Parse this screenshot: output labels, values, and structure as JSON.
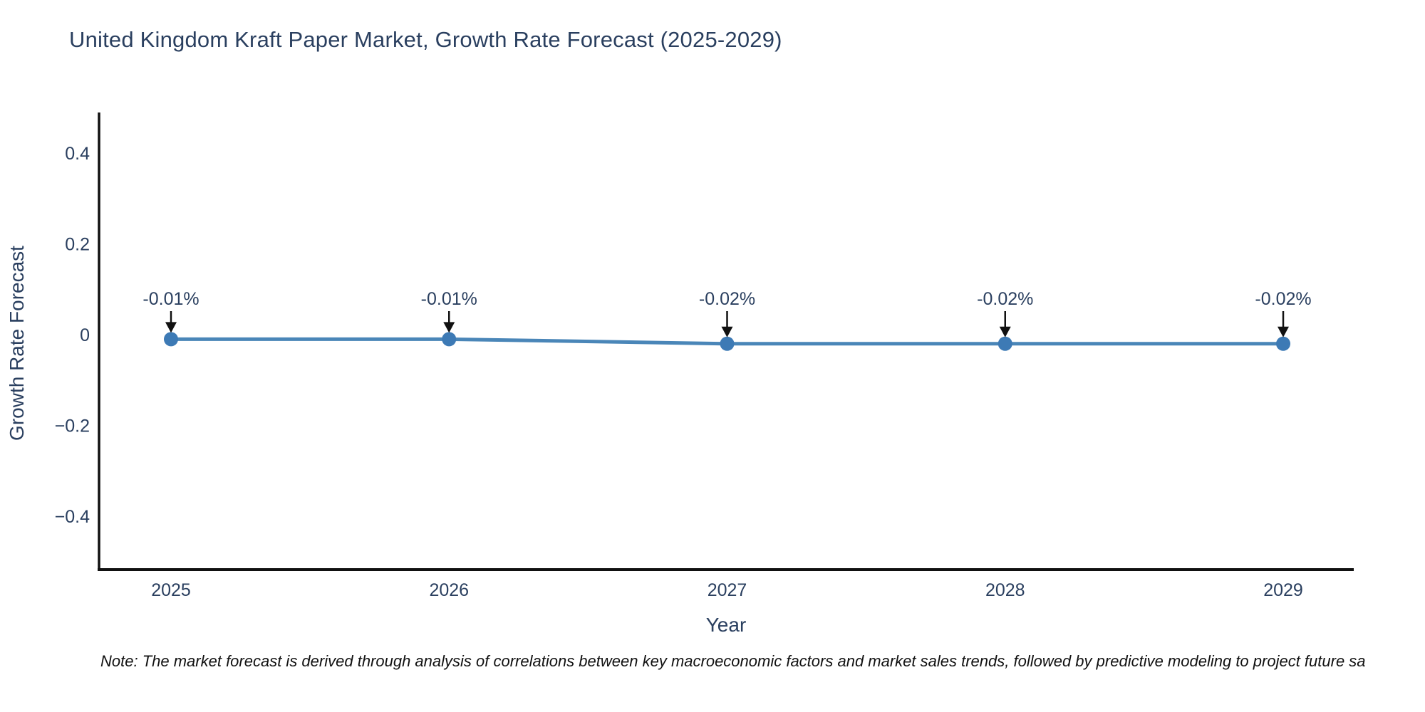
{
  "chart_data": {
    "type": "line",
    "title": "United Kingdom Kraft Paper Market, Growth Rate Forecast (2025-2029)",
    "xlabel": "Year",
    "ylabel": "Growth Rate Forecast",
    "x": [
      2025,
      2026,
      2027,
      2028,
      2029
    ],
    "values": [
      -0.01,
      -0.01,
      -0.02,
      -0.02,
      -0.02
    ],
    "point_labels": [
      "-0.01%",
      "-0.01%",
      "-0.02%",
      "-0.02%",
      "-0.02%"
    ],
    "yticks": [
      0.4,
      0.2,
      0,
      -0.2,
      -0.4
    ],
    "ytick_labels": [
      "0.4",
      "0.2",
      "0",
      "−0.2",
      "−0.4"
    ],
    "ylim": [
      -0.52,
      0.49
    ],
    "grid": false,
    "legend": "none",
    "line_color": "#4a86b8",
    "marker_color": "#3d7ab5",
    "axis_color": "#111111",
    "text_color": "#2a3f5f",
    "arrow_color": "#111111",
    "note": "Note: The market forecast is derived through analysis of correlations between key macroeconomic factors and market sales trends, followed by predictive modeling to project future sa"
  }
}
